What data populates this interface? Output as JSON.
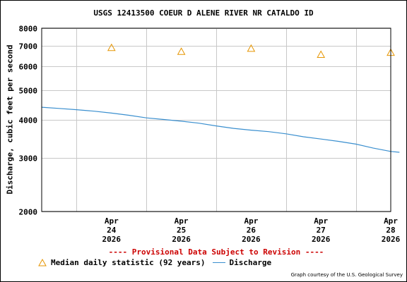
{
  "chart_data": {
    "type": "line",
    "title": "USGS 12413500 COEUR D ALENE RIVER NR CATALDO ID",
    "ylabel": "Discharge, cubic feet per second",
    "xlabel": "",
    "y_scale": "log",
    "ylim": [
      2000,
      8000
    ],
    "y_ticks": [
      2000,
      3000,
      4000,
      5000,
      6000,
      7000,
      8000
    ],
    "x_range": [
      "2026-04-23 12:00",
      "2026-04-28 12:00"
    ],
    "x_ticks": [
      {
        "date": "2026-04-24",
        "label": [
          "Apr",
          "24",
          "2026"
        ]
      },
      {
        "date": "2026-04-25",
        "label": [
          "Apr",
          "25",
          "2026"
        ]
      },
      {
        "date": "2026-04-26",
        "label": [
          "Apr",
          "26",
          "2026"
        ]
      },
      {
        "date": "2026-04-27",
        "label": [
          "Apr",
          "27",
          "2026"
        ]
      },
      {
        "date": "2026-04-28",
        "label": [
          "Apr",
          "28",
          "2026"
        ]
      }
    ],
    "grid": true,
    "legend_position": "bottom-left",
    "series": [
      {
        "name": "Discharge",
        "kind": "line",
        "color": "#3a8fcf",
        "points": [
          [
            "2026-04-23 12:00",
            4400
          ],
          [
            "2026-04-23 18:00",
            4360
          ],
          [
            "2026-04-24 00:00",
            4320
          ],
          [
            "2026-04-24 06:00",
            4270
          ],
          [
            "2026-04-24 12:00",
            4210
          ],
          [
            "2026-04-24 18:00",
            4140
          ],
          [
            "2026-04-25 00:00",
            4060
          ],
          [
            "2026-04-25 06:00",
            4010
          ],
          [
            "2026-04-25 12:00",
            3960
          ],
          [
            "2026-04-25 18:00",
            3900
          ],
          [
            "2026-04-26 00:00",
            3820
          ],
          [
            "2026-04-26 06:00",
            3750
          ],
          [
            "2026-04-26 12:00",
            3700
          ],
          [
            "2026-04-26 18:00",
            3660
          ],
          [
            "2026-04-27 00:00",
            3600
          ],
          [
            "2026-04-27 06:00",
            3520
          ],
          [
            "2026-04-27 12:00",
            3460
          ],
          [
            "2026-04-27 18:00",
            3400
          ],
          [
            "2026-04-28 00:00",
            3330
          ],
          [
            "2026-04-28 06:00",
            3230
          ],
          [
            "2026-04-28 12:00",
            3150
          ],
          [
            "2026-04-28 15:00",
            3130
          ]
        ]
      },
      {
        "name": "Median daily statistic (92 years)",
        "kind": "marker",
        "marker": "triangle",
        "color": "#e69500",
        "points": [
          [
            "2026-04-24 12:00",
            6900
          ],
          [
            "2026-04-25 12:00",
            6700
          ],
          [
            "2026-04-26 12:00",
            6860
          ],
          [
            "2026-04-27 12:00",
            6550
          ],
          [
            "2026-04-28 12:00",
            6650
          ]
        ]
      }
    ]
  },
  "notice": "---- Provisional Data Subject to Revision ----",
  "credit": "Graph courtesy of the U.S. Geological Survey"
}
